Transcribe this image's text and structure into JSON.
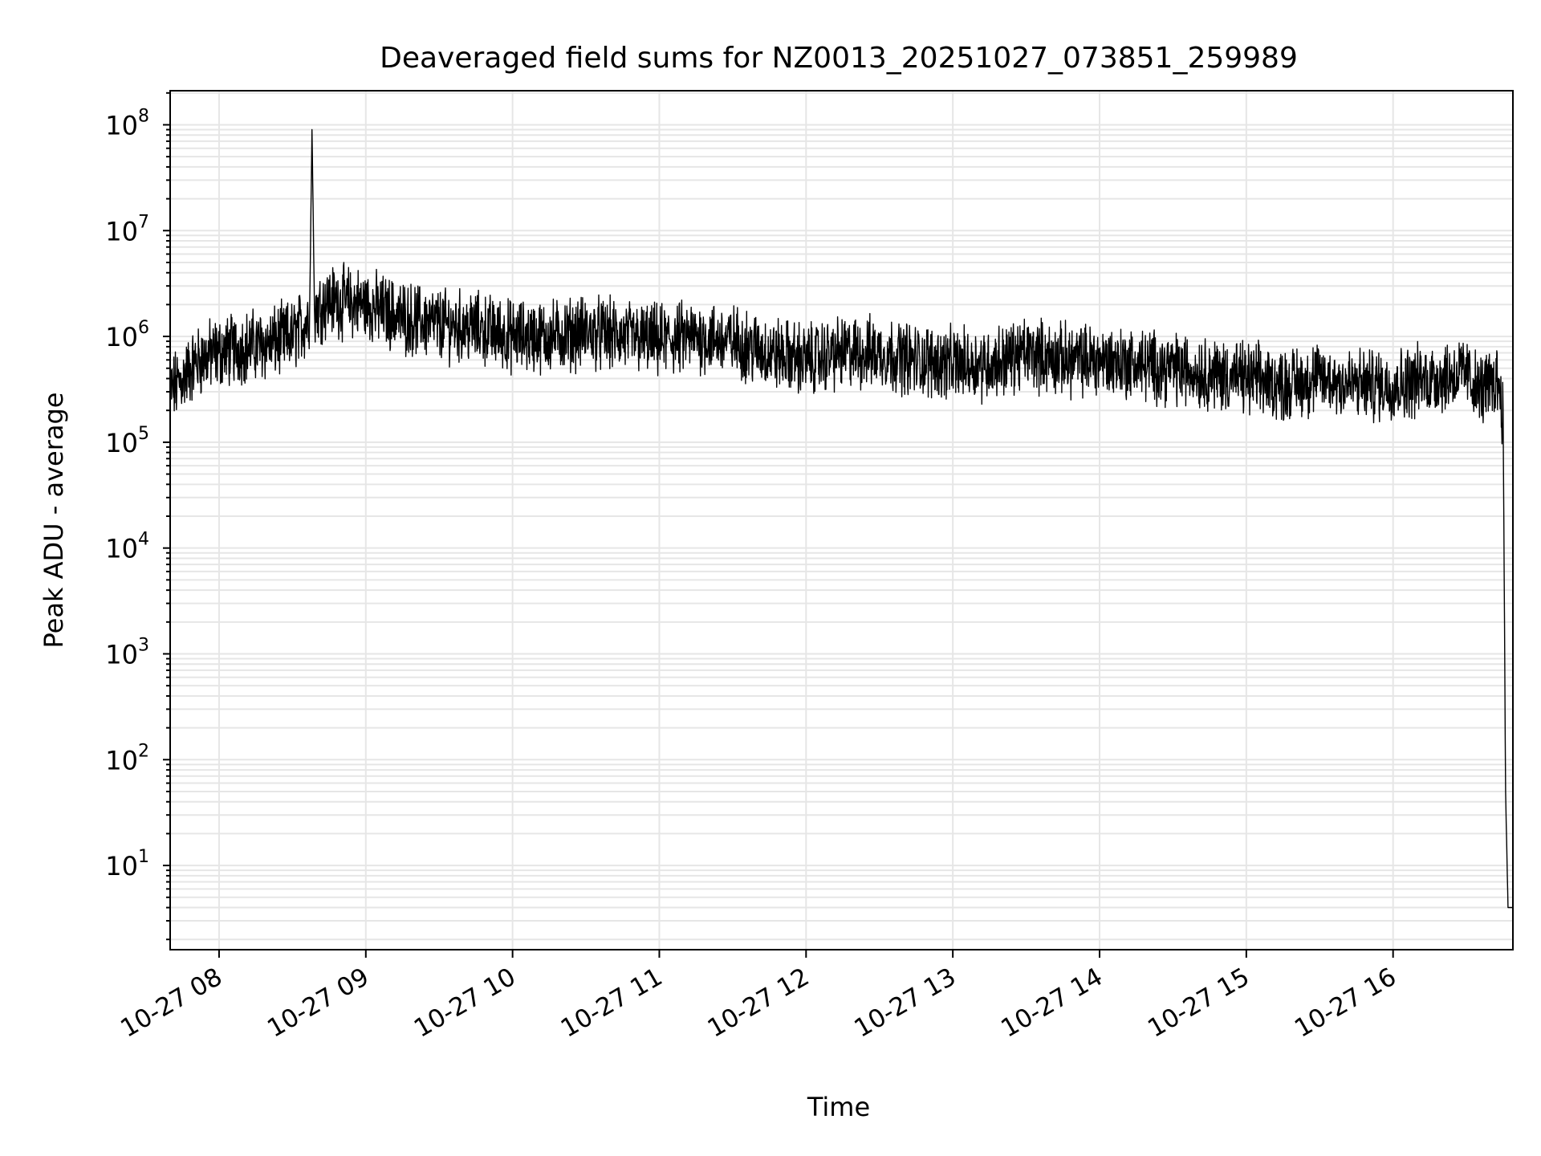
{
  "chart_data": {
    "type": "line",
    "title": "Deaveraged field sums for NZ0013_20251027_073851_259989",
    "xlabel": "Time",
    "ylabel": "Peak ADU - average",
    "yscale": "log",
    "xlim": [
      "2025-10-27 07:40",
      "2025-10-27 16:49"
    ],
    "ylim": [
      1.6,
      210000000.0
    ],
    "grid": true,
    "x_ticks": [
      "10-27 08",
      "10-27 09",
      "10-27 10",
      "10-27 11",
      "10-27 12",
      "10-27 13",
      "10-27 14",
      "10-27 15",
      "10-27 16"
    ],
    "y_ticks": [
      {
        "base": "10",
        "exp": "1",
        "value": 10
      },
      {
        "base": "10",
        "exp": "2",
        "value": 100
      },
      {
        "base": "10",
        "exp": "3",
        "value": 1000
      },
      {
        "base": "10",
        "exp": "4",
        "value": 10000
      },
      {
        "base": "10",
        "exp": "5",
        "value": 100000
      },
      {
        "base": "10",
        "exp": "6",
        "value": 1000000
      },
      {
        "base": "10",
        "exp": "7",
        "value": 10000000
      },
      {
        "base": "10",
        "exp": "8",
        "value": 100000000
      }
    ],
    "series": [
      {
        "color": "#000000",
        "x": [
          "2025-10-27 07:40",
          "2025-10-27 07:45",
          "2025-10-27 07:50",
          "2025-10-27 07:55",
          "2025-10-27 08:00",
          "2025-10-27 08:10",
          "2025-10-27 08:20",
          "2025-10-27 08:30",
          "2025-10-27 08:37",
          "2025-10-27 08:38",
          "2025-10-27 08:39",
          "2025-10-27 08:45",
          "2025-10-27 09:00",
          "2025-10-27 09:15",
          "2025-10-27 09:30",
          "2025-10-27 09:45",
          "2025-10-27 10:00",
          "2025-10-27 10:15",
          "2025-10-27 10:30",
          "2025-10-27 10:45",
          "2025-10-27 11:00",
          "2025-10-27 11:15",
          "2025-10-27 11:30",
          "2025-10-27 11:45",
          "2025-10-27 12:00",
          "2025-10-27 12:15",
          "2025-10-27 12:30",
          "2025-10-27 12:45",
          "2025-10-27 13:00",
          "2025-10-27 13:15",
          "2025-10-27 13:30",
          "2025-10-27 13:45",
          "2025-10-27 14:00",
          "2025-10-27 14:15",
          "2025-10-27 14:30",
          "2025-10-27 14:45",
          "2025-10-27 15:00",
          "2025-10-27 15:15",
          "2025-10-27 15:30",
          "2025-10-27 15:45",
          "2025-10-27 16:00",
          "2025-10-27 16:15",
          "2025-10-27 16:30",
          "2025-10-27 16:35",
          "2025-10-27 16:40",
          "2025-10-27 16:43",
          "2025-10-27 16:45",
          "2025-10-27 16:46",
          "2025-10-27 16:47",
          "2025-10-27 16:49"
        ],
        "y": [
          300000,
          400000,
          550000,
          650000,
          700000,
          800000,
          850000,
          1000000,
          1500000,
          90000000,
          1800000,
          2200000,
          2000000,
          1500000,
          1300000,
          1200000,
          1000000,
          1000000,
          1100000,
          1000000,
          900000,
          1000000,
          900000,
          700000,
          600000,
          700000,
          700000,
          600000,
          550000,
          550000,
          700000,
          600000,
          600000,
          550000,
          500000,
          450000,
          400000,
          350000,
          400000,
          350000,
          350000,
          400000,
          450000,
          300000,
          350000,
          400000,
          200000,
          50,
          4,
          4
        ]
      }
    ]
  }
}
